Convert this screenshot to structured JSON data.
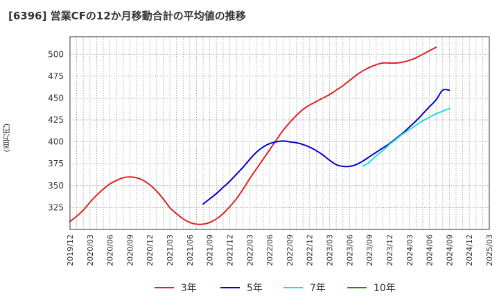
{
  "title": "[6396]  営業CFの12か月移動合計の平均値の推移",
  "y_unit_label": "(百万円)",
  "chart_data": {
    "type": "line",
    "title": "[6396]  営業CFの12か月移動合計の平均値の推移",
    "xlabel": "",
    "ylabel": "(百万円)",
    "ylim": [
      300,
      520
    ],
    "xlim": [
      "2019/12",
      "2025/03"
    ],
    "yticks": [
      325,
      350,
      375,
      400,
      425,
      450,
      475,
      500
    ],
    "xticks": [
      "2019/12",
      "2020/03",
      "2020/06",
      "2020/09",
      "2020/12",
      "2021/03",
      "2021/06",
      "2021/09",
      "2021/12",
      "2022/03",
      "2022/06",
      "2022/09",
      "2022/12",
      "2023/03",
      "2023/06",
      "2023/09",
      "2023/12",
      "2024/03",
      "2024/06",
      "2024/09",
      "2024/12",
      "2025/03"
    ],
    "grid": true,
    "legend_position": "bottom",
    "series": [
      {
        "name": "3年",
        "color": "#dd2222",
        "x": [
          "2019/12",
          "2020/01",
          "2020/02",
          "2020/03",
          "2020/04",
          "2020/05",
          "2020/06",
          "2020/07",
          "2020/08",
          "2020/09",
          "2020/10",
          "2020/11",
          "2020/12",
          "2021/01",
          "2021/02",
          "2021/03",
          "2021/04",
          "2021/05",
          "2021/06",
          "2021/07",
          "2021/08",
          "2021/09",
          "2021/10",
          "2021/11",
          "2021/12",
          "2022/01",
          "2022/02",
          "2022/03",
          "2022/04",
          "2022/05",
          "2022/06",
          "2022/07",
          "2022/08",
          "2022/09",
          "2022/10",
          "2022/11",
          "2022/12",
          "2023/01",
          "2023/02",
          "2023/03",
          "2023/04",
          "2023/05",
          "2023/06",
          "2023/07",
          "2023/08",
          "2023/09",
          "2023/10",
          "2023/11",
          "2023/12",
          "2024/01",
          "2024/02",
          "2024/03",
          "2024/04",
          "2024/05",
          "2024/06",
          "2024/07",
          "2024/08",
          "2024/09"
        ],
        "values": [
          309,
          315,
          322,
          331,
          339,
          346,
          352,
          356,
          359,
          360,
          359,
          356,
          351,
          344,
          335,
          325,
          318,
          312,
          308,
          306,
          306,
          308,
          312,
          318,
          326,
          335,
          346,
          358,
          369,
          380,
          391,
          402,
          413,
          422,
          430,
          437,
          442,
          446,
          450,
          454,
          459,
          464,
          470,
          476,
          481,
          485,
          488,
          490,
          490,
          490,
          491,
          493,
          496,
          500,
          504,
          508,
          null,
          null
        ]
      },
      {
        "name": "5年",
        "color": "#0000cc",
        "x": [
          "2021/08",
          "2021/09",
          "2021/10",
          "2021/11",
          "2021/12",
          "2022/01",
          "2022/02",
          "2022/03",
          "2022/04",
          "2022/05",
          "2022/06",
          "2022/07",
          "2022/08",
          "2022/09",
          "2022/10",
          "2022/11",
          "2022/12",
          "2023/01",
          "2023/02",
          "2023/03",
          "2023/04",
          "2023/05",
          "2023/06",
          "2023/07",
          "2023/08",
          "2023/09",
          "2023/10",
          "2023/11",
          "2023/12",
          "2024/01",
          "2024/02",
          "2024/03",
          "2024/04",
          "2024/05",
          "2024/06",
          "2024/07",
          "2024/08",
          "2024/09"
        ],
        "values": [
          329,
          335,
          341,
          348,
          355,
          363,
          371,
          380,
          388,
          394,
          398,
          400,
          401,
          400,
          399,
          397,
          394,
          390,
          385,
          379,
          374,
          372,
          372,
          374,
          378,
          383,
          388,
          393,
          398,
          404,
          410,
          417,
          424,
          432,
          440,
          448,
          459,
          459
        ]
      },
      {
        "name": "7年",
        "color": "#22dddd",
        "x": [
          "2023/08",
          "2023/09",
          "2023/10",
          "2023/11",
          "2023/12",
          "2024/01",
          "2024/02",
          "2024/03",
          "2024/04",
          "2024/05",
          "2024/06",
          "2024/07",
          "2024/08",
          "2024/09"
        ],
        "values": [
          372,
          377,
          384,
          390,
          397,
          403,
          409,
          414,
          419,
          424,
          428,
          432,
          435,
          438
        ]
      },
      {
        "name": "10年",
        "color": "#228822",
        "x": [],
        "values": []
      }
    ]
  }
}
